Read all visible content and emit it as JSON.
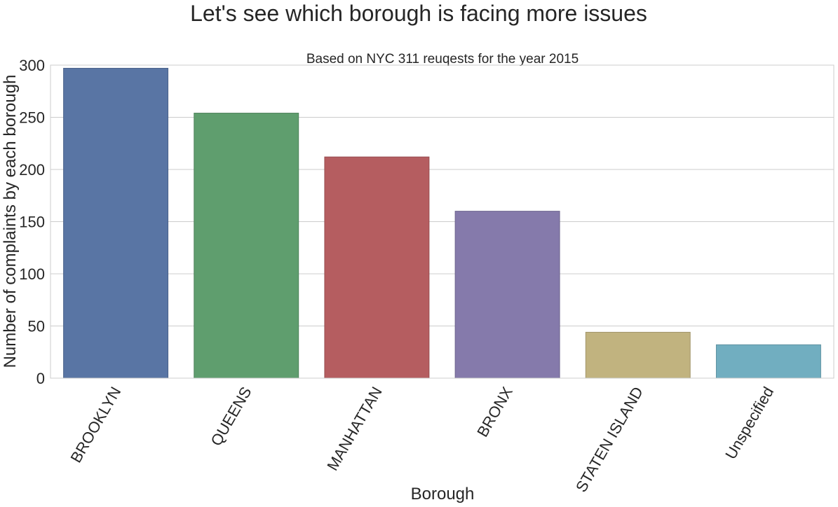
{
  "chart_data": {
    "type": "bar",
    "suptitle": "Let's see which borough is facing more issues",
    "title": "Based on NYC 311 reuqests for the year 2015",
    "xlabel": "Borough",
    "ylabel": "Number of complaints by each borough",
    "categories": [
      "BROOKLYN",
      "QUEENS",
      "MANHATTAN",
      "BRONX",
      "STATEN ISLAND",
      "Unspecified"
    ],
    "values": [
      297,
      254,
      212,
      160,
      44,
      32
    ],
    "colors": [
      "#5975a4",
      "#5f9e6e",
      "#b55d60",
      "#857aab",
      "#c1b37f",
      "#71aec0"
    ],
    "edge_colors": [
      "#4a6189",
      "#4f845c",
      "#974d50",
      "#6f668f",
      "#a1956a",
      "#5e91a0"
    ],
    "ylim": [
      0,
      300
    ],
    "yticks": [
      0,
      50,
      100,
      150,
      200,
      250,
      300
    ],
    "grid": true
  }
}
